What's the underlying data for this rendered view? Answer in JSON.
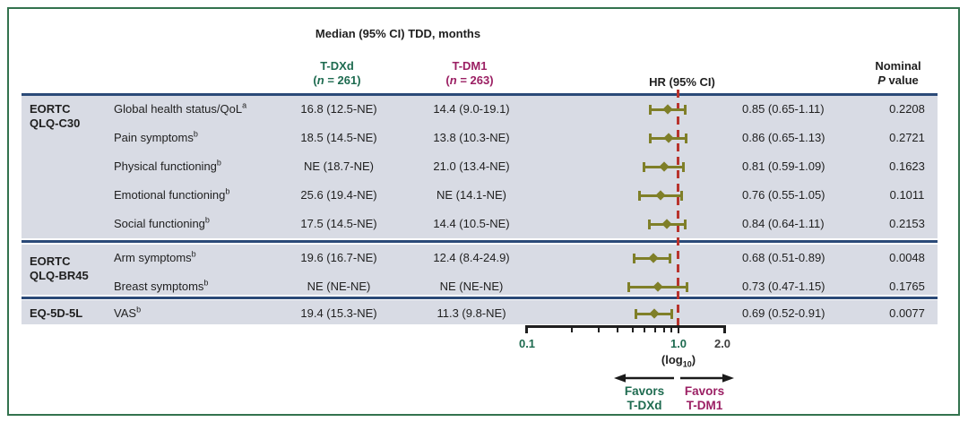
{
  "header": {
    "col_tdxd": {
      "name": "T-DXd",
      "n_open": "(",
      "n_sym": "n",
      "n_rest": " = 261)"
    },
    "col_tdm1": {
      "name": "T-DM1",
      "n_open": "(",
      "n_sym": "n",
      "n_rest": " = 263)"
    },
    "hr_label": "HR (95% CI)",
    "p_line1": "Nominal",
    "p_sym": "P",
    "p_rest": " value"
  },
  "chart_data": {
    "type": "forest",
    "title": "Median (95% CI) TDD, months",
    "x_axis": {
      "scale": "log10",
      "range": [
        0.1,
        2.0
      ],
      "tick_labels": [
        "0.1",
        "1.0",
        "2.0"
      ],
      "minor_ticks": [
        0.2,
        0.3,
        0.4,
        0.5,
        0.6,
        0.7,
        0.8,
        0.9
      ],
      "reference_line": 1.0,
      "note_pre": "(log",
      "note_sub": "10",
      "note_post": ")"
    },
    "groups": [
      {
        "name_lines": [
          "EORTC",
          "QLQ-C30"
        ],
        "rows": [
          {
            "label": "Global health status/QoL",
            "sup": "a",
            "tdxd_median": "16.8 (12.5-NE)",
            "tdm1_median": "14.4 (9.0-19.1)",
            "hr": 0.85,
            "ci": [
              0.65,
              1.11
            ],
            "hr_text": "0.85 (0.65-1.11)",
            "p_value": "0.2208"
          },
          {
            "label": "Pain symptoms",
            "sup": "b",
            "tdxd_median": "18.5 (14.5-NE)",
            "tdm1_median": "13.8 (10.3-NE)",
            "hr": 0.86,
            "ci": [
              0.65,
              1.13
            ],
            "hr_text": "0.86 (0.65-1.13)",
            "p_value": "0.2721"
          },
          {
            "label": "Physical functioning",
            "sup": "b",
            "tdxd_median": "NE (18.7-NE)",
            "tdm1_median": "21.0 (13.4-NE)",
            "hr": 0.81,
            "ci": [
              0.59,
              1.09
            ],
            "hr_text": "0.81 (0.59-1.09)",
            "p_value": "0.1623"
          },
          {
            "label": "Emotional functioning",
            "sup": "b",
            "tdxd_median": "25.6 (19.4-NE)",
            "tdm1_median": "NE (14.1-NE)",
            "hr": 0.76,
            "ci": [
              0.55,
              1.05
            ],
            "hr_text": "0.76 (0.55-1.05)",
            "p_value": "0.1011"
          },
          {
            "label": "Social functioning",
            "sup": "b",
            "tdxd_median": "17.5 (14.5-NE)",
            "tdm1_median": "14.4 (10.5-NE)",
            "hr": 0.84,
            "ci": [
              0.64,
              1.11
            ],
            "hr_text": "0.84 (0.64-1.11)",
            "p_value": "0.2153"
          }
        ]
      },
      {
        "name_lines": [
          "EORTC",
          "QLQ-BR45"
        ],
        "rows": [
          {
            "label": "Arm symptoms",
            "sup": "b",
            "tdxd_median": "19.6 (16.7-NE)",
            "tdm1_median": "12.4 (8.4-24.9)",
            "hr": 0.68,
            "ci": [
              0.51,
              0.89
            ],
            "hr_text": "0.68 (0.51-0.89)",
            "p_value": "0.0048"
          },
          {
            "label": "Breast symptoms",
            "sup": "b",
            "tdxd_median": "NE (NE-NE)",
            "tdm1_median": "NE (NE-NE)",
            "hr": 0.73,
            "ci": [
              0.47,
              1.15
            ],
            "hr_text": "0.73 (0.47-1.15)",
            "p_value": "0.1765"
          }
        ]
      },
      {
        "name_lines": [
          "EQ-5D-5L"
        ],
        "rows": [
          {
            "label": "VAS",
            "sup": "b",
            "tdxd_median": "19.4 (15.3-NE)",
            "tdm1_median": "11.3 (9.8-NE)",
            "hr": 0.69,
            "ci": [
              0.52,
              0.91
            ],
            "hr_text": "0.69 (0.52-0.91)",
            "p_value": "0.0077"
          }
        ]
      }
    ],
    "legend": {
      "favors_left": [
        "Favors",
        "T-DXd"
      ],
      "favors_right": [
        "Favors",
        "T-DM1"
      ]
    }
  },
  "colors": {
    "tdxd_green": "#1e6b50",
    "tdm1_magenta": "#9b1f63",
    "marker_olive": "#7f7f28",
    "reference_red": "#b8332d",
    "separator_navy": "#2b4a78",
    "band_background": "#d8dbe4",
    "frame_green": "#33734e"
  }
}
